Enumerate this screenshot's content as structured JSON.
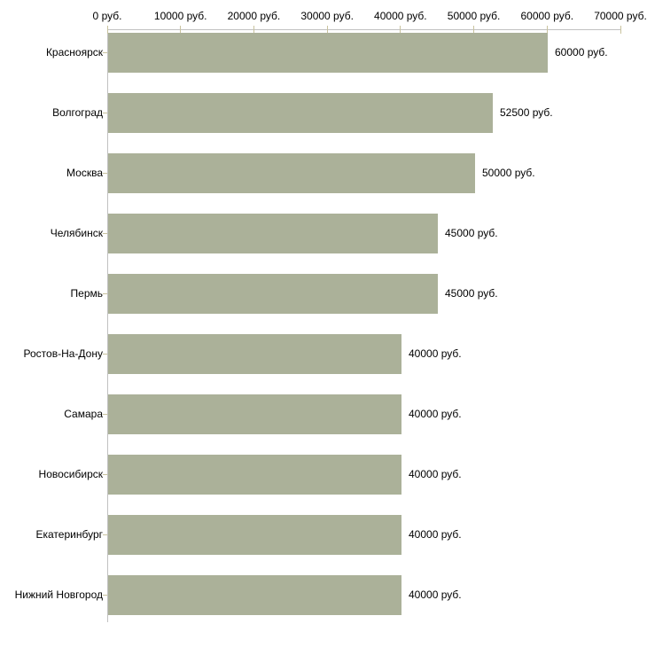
{
  "chart_data": {
    "type": "bar",
    "orientation": "horizontal",
    "title": "",
    "xlabel": "",
    "ylabel": "",
    "unit": "руб.",
    "xlim": [
      0,
      70000
    ],
    "grid": false,
    "legend": "none",
    "categories": [
      "Красноярск",
      "Волгоград",
      "Москва",
      "Челябинск",
      "Пермь",
      "Ростов-На-Дону",
      "Самара",
      "Новосибирск",
      "Екатеринбург",
      "Нижний Новгород"
    ],
    "values": [
      60000,
      52500,
      50000,
      45000,
      45000,
      40000,
      40000,
      40000,
      40000,
      40000
    ],
    "value_labels": [
      "60000 руб.",
      "52500 руб.",
      "50000 руб.",
      "45000 руб.",
      "45000 руб.",
      "40000 руб.",
      "40000 руб.",
      "40000 руб.",
      "40000 руб.",
      "40000 руб."
    ],
    "x_ticks": {
      "values": [
        0,
        10000,
        20000,
        30000,
        40000,
        50000,
        60000,
        70000
      ],
      "labels": [
        "0 руб.",
        "10000 руб.",
        "20000 руб.",
        "30000 руб.",
        "40000 руб.",
        "50000 руб.",
        "60000 руб.",
        "70000 руб."
      ]
    },
    "colors": {
      "bar": "#abb199",
      "axis_line": "#c1c1c1",
      "tick_mark": "#c9c39e",
      "text": "#000000",
      "background": "#ffffff"
    }
  }
}
